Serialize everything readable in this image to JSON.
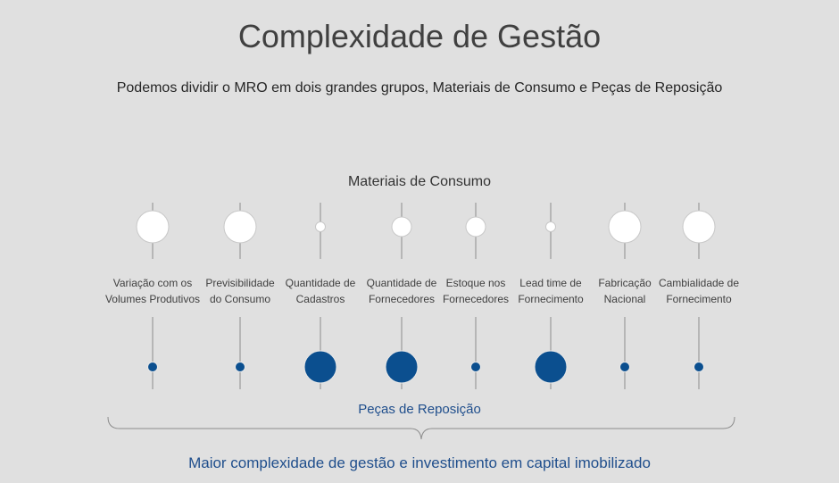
{
  "title": "Complexidade de Gestão",
  "subtitle": "Podemos dividir o MRO em dois grandes grupos, Materiais de Consumo e Peças de Reposição",
  "top_group_label": "Materiais de Consumo",
  "bottom_group_label": "Peças de Reposição",
  "conclusion": "Maior complexidade de gestão e investimento em capital imobilizado",
  "colors": {
    "top_circle": "#ffffff",
    "bottom_circle": "#0b4f8f",
    "line": "#8c8c8c",
    "accent_text": "#1f4e8c"
  },
  "criteria": [
    {
      "line1": "Variação com os",
      "line2": "Volumes Produtivos",
      "consumo_level": 3,
      "reposicao_level": 1
    },
    {
      "line1": "Previsibilidade",
      "line2": "do Consumo",
      "consumo_level": 3,
      "reposicao_level": 1
    },
    {
      "line1": "Quantidade de",
      "line2": "Cadastros",
      "consumo_level": 1,
      "reposicao_level": 3
    },
    {
      "line1": "Quantidade de",
      "line2": "Fornecedores",
      "consumo_level": 2,
      "reposicao_level": 3
    },
    {
      "line1": "Estoque nos",
      "line2": "Fornecedores",
      "consumo_level": 2,
      "reposicao_level": 1
    },
    {
      "line1": "Lead time de",
      "line2": "Fornecimento",
      "consumo_level": 1,
      "reposicao_level": 3
    },
    {
      "line1": "Fabricação",
      "line2": "Nacional",
      "consumo_level": 3,
      "reposicao_level": 1
    },
    {
      "line1": "Cambialidade de",
      "line2": "Fornecimento",
      "consumo_level": 3,
      "reposicao_level": 1
    }
  ]
}
